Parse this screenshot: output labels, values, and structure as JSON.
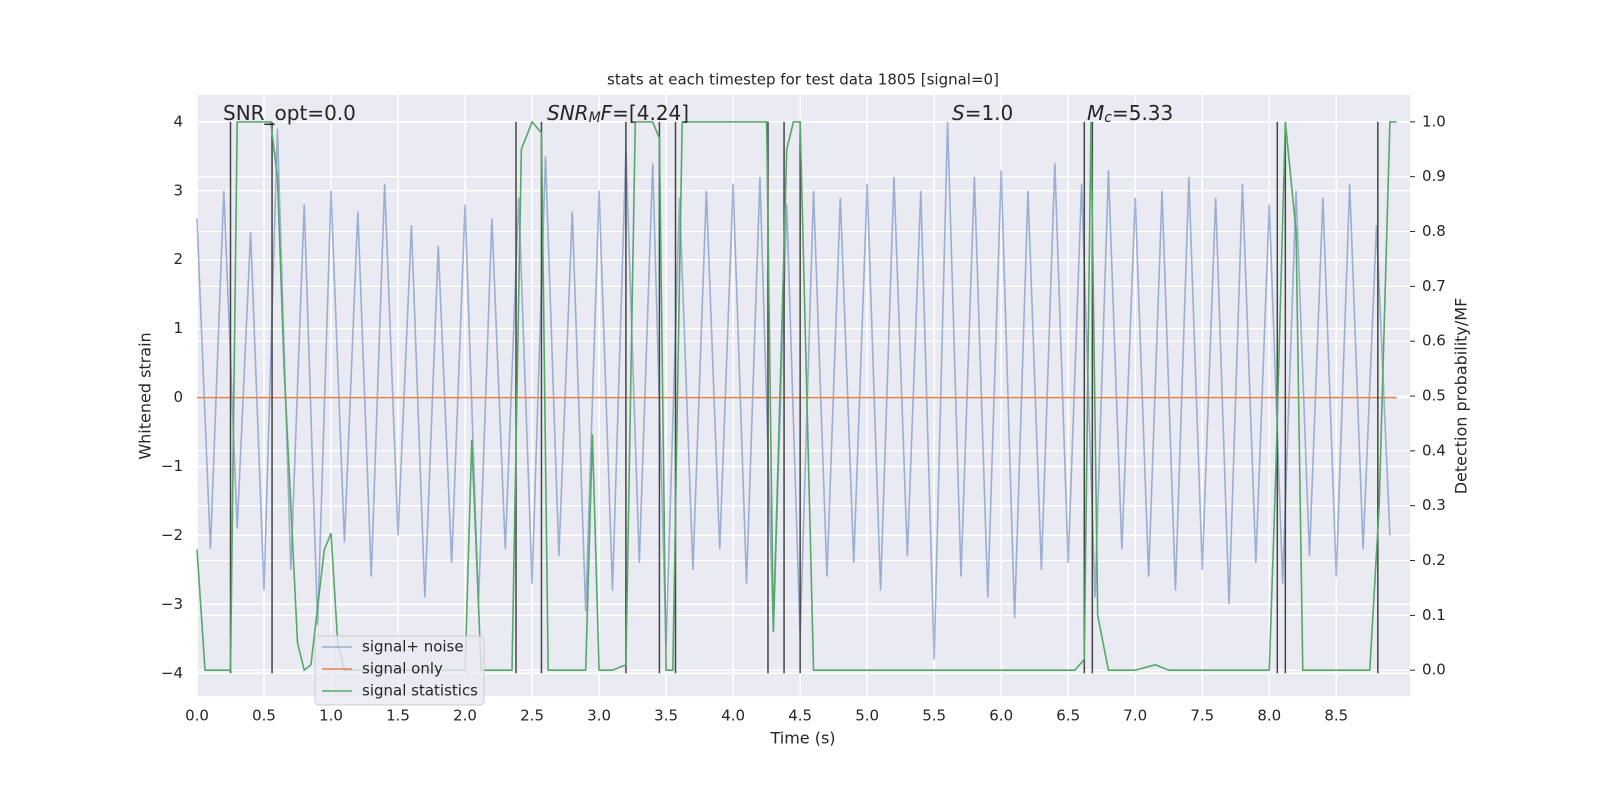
{
  "chart_data": {
    "type": "line",
    "title": "stats at each timestep for test data 1805 [signal=0]",
    "xlabel": "Time (s)",
    "ylabel": "Whitened strain",
    "y2label": "Detection probability/MF",
    "xlim": [
      0,
      9.05
    ],
    "ylim": [
      -4.33,
      4.39
    ],
    "y2lim": [
      -0.047,
      1.049
    ],
    "xticks": [
      {
        "value": 0,
        "label": "0.0"
      },
      0.5,
      {
        "value": 1,
        "label": "1.0"
      },
      1.5,
      {
        "value": 2,
        "label": "2.0"
      },
      2.5,
      {
        "value": 3,
        "label": "3.0"
      },
      3.5,
      {
        "value": 4,
        "label": "4.0"
      },
      4.5,
      {
        "value": 5,
        "label": "5.0"
      },
      5.5,
      {
        "value": 6,
        "label": "6.0"
      },
      6.5,
      {
        "value": 7,
        "label": "7.0"
      },
      7.5,
      {
        "value": 8,
        "label": "8.0"
      },
      8.5
    ],
    "yticks": [
      {
        "value": -4,
        "label": "−4"
      },
      {
        "value": -3,
        "label": "−3"
      },
      {
        "value": -2,
        "label": "−2"
      },
      {
        "value": -1,
        "label": "−1"
      },
      0,
      1,
      2,
      3,
      4
    ],
    "y2ticks": [
      {
        "value": 0,
        "label": "0.0"
      },
      0.1,
      0.2,
      0.3,
      0.4,
      0.5,
      0.6,
      0.7,
      0.8,
      0.9,
      {
        "value": 1,
        "label": "1.0"
      }
    ],
    "grid": true,
    "legend": "lower left",
    "series": [
      {
        "name": "signal+ noise",
        "color": "#4c72b0",
        "opacity": 0.5,
        "x": [
          0,
          0.1,
          0.2,
          0.3,
          0.4,
          0.5,
          0.6,
          0.7,
          0.8,
          0.9,
          1,
          1.1,
          1.2,
          1.3,
          1.4,
          1.5,
          1.6,
          1.7,
          1.8,
          1.9,
          2,
          2.1,
          2.2,
          2.3,
          2.4,
          2.5,
          2.6,
          2.7,
          2.8,
          2.9,
          3,
          3.1,
          3.2,
          3.3,
          3.4,
          3.5,
          3.6,
          3.7,
          3.8,
          3.9,
          4,
          4.1,
          4.2,
          4.3,
          4.4,
          4.5,
          4.6,
          4.7,
          4.8,
          4.9,
          5,
          5.1,
          5.2,
          5.3,
          5.4,
          5.5,
          5.6,
          5.7,
          5.8,
          5.9,
          6,
          6.1,
          6.2,
          6.3,
          6.4,
          6.5,
          6.6,
          6.7,
          6.8,
          6.9,
          7,
          7.1,
          7.2,
          7.3,
          7.4,
          7.5,
          7.6,
          7.7,
          7.8,
          7.9,
          8,
          8.1,
          8.2,
          8.3,
          8.4,
          8.5,
          8.6,
          8.7,
          8.8,
          8.9
        ],
        "values": [
          2.6,
          -2.2,
          3.0,
          -1.9,
          2.4,
          -2.8,
          3.9,
          -2.5,
          2.8,
          -3.3,
          3.0,
          -2.1,
          2.7,
          -2.6,
          3.1,
          -2.0,
          2.5,
          -2.9,
          2.2,
          -2.4,
          2.8,
          -3.0,
          2.6,
          -2.2,
          2.9,
          -2.7,
          3.5,
          -2.3,
          2.7,
          -3.1,
          3.0,
          -2.8,
          3.6,
          -2.4,
          3.4,
          -3.6,
          2.9,
          -2.5,
          3.0,
          -2.2,
          3.1,
          -2.7,
          3.2,
          -3.4,
          2.8,
          -3.5,
          3.0,
          -2.6,
          2.9,
          -2.4,
          3.1,
          -2.8,
          3.2,
          -2.3,
          3.0,
          -3.8,
          4.0,
          -2.6,
          3.2,
          -2.9,
          3.3,
          -3.2,
          3.0,
          -2.5,
          3.4,
          -2.4,
          3.1,
          -2.9,
          3.3,
          -2.2,
          2.9,
          -2.6,
          3.0,
          -2.8,
          3.2,
          -2.5,
          2.9,
          -3.0,
          3.1,
          -2.4,
          2.8,
          -2.7,
          3.0,
          -2.3,
          2.9,
          -2.6,
          3.1,
          -2.2,
          2.5,
          -2.0
        ]
      },
      {
        "name": "signal only",
        "color": "#dd8452",
        "opacity": 1,
        "x": [
          0,
          8.95
        ],
        "values": [
          0,
          0
        ]
      },
      {
        "name": "signal statistics",
        "color": "#55a868",
        "opacity": 1,
        "axis": "y2",
        "x": [
          0,
          0.06,
          0.25,
          0.3,
          0.55,
          0.6,
          0.65,
          0.75,
          0.8,
          0.85,
          0.95,
          1.0,
          1.05,
          1.1,
          2.0,
          2.05,
          2.12,
          2.35,
          2.42,
          2.5,
          2.57,
          2.62,
          2.9,
          2.95,
          3.0,
          3.1,
          3.2,
          3.27,
          3.4,
          3.45,
          3.5,
          3.55,
          3.62,
          4.25,
          4.3,
          4.4,
          4.45,
          4.5,
          4.6,
          6.55,
          6.62,
          6.67,
          6.72,
          6.8,
          7.0,
          7.15,
          7.25,
          8.0,
          8.05,
          8.12,
          8.2,
          8.25,
          8.75,
          8.82,
          8.9,
          8.95
        ],
        "values": [
          0.22,
          0,
          0,
          1,
          1,
          0.9,
          0.55,
          0.05,
          0,
          0.01,
          0.22,
          0.25,
          0.05,
          0,
          0,
          0.42,
          0,
          0,
          0.95,
          1,
          0.98,
          0,
          0,
          0.43,
          0,
          0,
          0.01,
          1,
          1,
          0.97,
          0,
          0,
          1,
          1,
          0.07,
          0.95,
          1,
          1,
          0,
          0,
          0.02,
          1,
          0.1,
          0,
          0,
          0.01,
          0,
          0,
          0.37,
          1,
          0.8,
          0,
          0,
          0.3,
          1,
          1
        ]
      }
    ],
    "vlines": {
      "color": "#444444",
      "x": [
        0.25,
        0.56,
        2.38,
        2.57,
        3.2,
        3.45,
        3.57,
        4.26,
        4.38,
        4.5,
        6.62,
        6.68,
        8.06,
        8.12,
        8.81
      ]
    },
    "annotations": [
      {
        "parts": [
          {
            "text": "SNR_opt=0.0",
            "style": "normal"
          }
        ]
      },
      {
        "parts": [
          {
            "text": "SNR",
            "style": "italic"
          },
          {
            "text": "M",
            "style": "italic-sub"
          },
          {
            "text": "F",
            "style": "italic"
          },
          {
            "text": "=[4.24]",
            "style": "normal"
          }
        ]
      },
      {
        "parts": [
          {
            "text": "S",
            "style": "italic"
          },
          {
            "text": "=1.0",
            "style": "normal"
          }
        ]
      },
      {
        "parts": [
          {
            "text": "M",
            "style": "italic"
          },
          {
            "text": "c",
            "style": "italic-sub"
          },
          {
            "text": "=5.33",
            "style": "normal"
          }
        ]
      }
    ]
  }
}
